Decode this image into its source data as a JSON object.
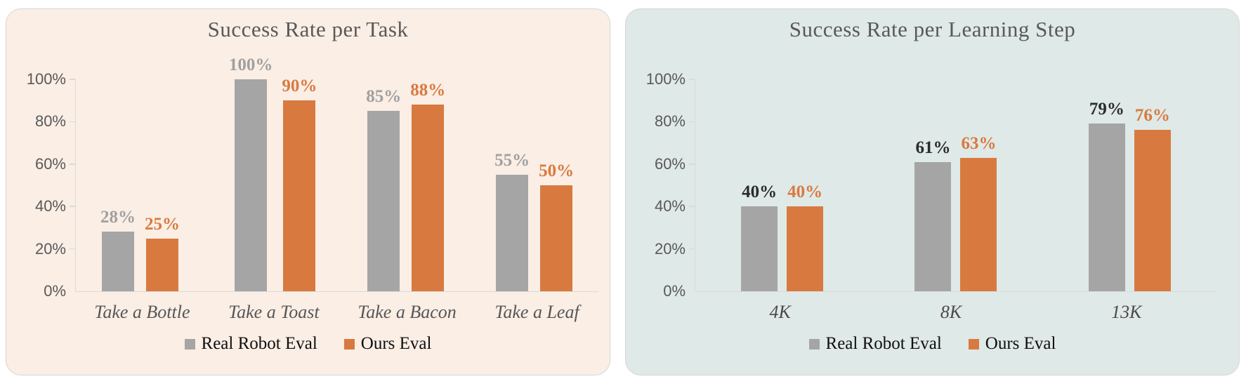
{
  "page": {
    "background": "#ffffff"
  },
  "chart_data": [
    {
      "type": "bar",
      "title": "Success Rate per Task",
      "panel_background": "#faeee5",
      "panel_border_color": "#d6d6d6",
      "title_color": "#595959",
      "axis_color": "#dadada",
      "tick_label_color": "#595959",
      "category_label_color": "#565656",
      "legend_text_color": "#0f0f0f",
      "categories": [
        "Take a Bottle",
        "Take a Toast",
        "Take a Bacon",
        "Take a Leaf"
      ],
      "series": [
        {
          "name": "Real Robot Eval",
          "color": "#a5a5a5",
          "label_color": "#a0a0a0",
          "values": [
            28,
            100,
            85,
            55
          ]
        },
        {
          "name": "Ours Eval",
          "color": "#d87a40",
          "label_color": "#d87a40",
          "values": [
            25,
            90,
            88,
            50
          ]
        }
      ],
      "value_suffix": "%",
      "ylim": [
        0,
        100
      ],
      "yticks": [
        0,
        20,
        40,
        60,
        80,
        100
      ],
      "ytick_suffix": "%",
      "grid": false,
      "legend_position": "bottom"
    },
    {
      "type": "bar",
      "title": "Success Rate per Learning Step",
      "panel_background": "#dfe9e7",
      "panel_border_color": "#d6d6d6",
      "title_color": "#595959",
      "axis_color": "#dadada",
      "tick_label_color": "#595959",
      "category_label_color": "#4a4a4a",
      "legend_text_color": "#0f0f0f",
      "categories": [
        "4K",
        "8K",
        "13K"
      ],
      "series": [
        {
          "name": "Real Robot Eval",
          "color": "#a5a5a5",
          "label_color": "#2b2b2b",
          "values": [
            40,
            61,
            79
          ]
        },
        {
          "name": "Ours Eval",
          "color": "#d87a40",
          "label_color": "#d87a40",
          "values": [
            40,
            63,
            76
          ]
        }
      ],
      "value_suffix": "%",
      "ylim": [
        0,
        100
      ],
      "yticks": [
        0,
        20,
        40,
        60,
        80,
        100
      ],
      "ytick_suffix": "%",
      "grid": false,
      "legend_position": "bottom"
    }
  ]
}
